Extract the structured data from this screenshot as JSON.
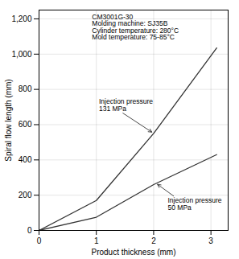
{
  "chart_data": {
    "type": "line",
    "x": [
      0.0,
      1.0,
      2.0,
      3.1
    ],
    "series": [
      {
        "color": "#333333",
        "values": [
          0,
          170,
          550,
          1035
        ]
      },
      {
        "color": "#333333",
        "values": [
          0,
          75,
          260,
          430
        ]
      }
    ],
    "xlabel": "Product thickness (mm)",
    "ylabel": "Spiral flow length (mm)",
    "xlim": [
      0,
      3.3
    ],
    "ylim": [
      0,
      1250
    ],
    "xticks": [
      0,
      1,
      2,
      3
    ],
    "yticks": [
      0,
      200,
      400,
      600,
      800,
      {
        "value": 1000,
        "label": "1,000"
      },
      {
        "value": 1200,
        "label": "1,200"
      }
    ],
    "grid": true,
    "annotations": [
      {
        "text": "CM3001G-30\nMolding machine: SJ35B\nCylinder temperature: 280°C\nMold temperature: 75-85°C"
      },
      {
        "text": "Injection pressure\n131 MPa",
        "x": 2.0,
        "y": 550
      },
      {
        "text": "Injection pressure\n50 MPa",
        "x": 2.05,
        "y": 265
      }
    ]
  }
}
